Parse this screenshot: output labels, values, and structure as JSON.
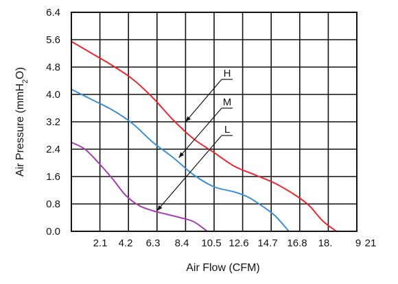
{
  "chart_data": {
    "type": "line",
    "title": "",
    "xlabel": "Air Flow (CFM)",
    "ylabel": "Air Pressure (mmH2O)",
    "xlim": [
      0,
      21
    ],
    "ylim": [
      0,
      6.4
    ],
    "x_ticks": [
      "2.1",
      "4.2",
      "6.3",
      "8.4",
      "10.5",
      "12.6",
      "14.7",
      "16.8",
      "18.",
      "9",
      "21"
    ],
    "y_ticks": [
      "6.4",
      "5.6",
      "4.8",
      "4.0",
      "3.2",
      "2.4",
      "1.6",
      "0.8",
      "0.0"
    ],
    "grid": true,
    "legend": "none",
    "series": [
      {
        "name": "H",
        "color": "#e8262e",
        "points": [
          [
            0,
            5.55
          ],
          [
            1.5,
            5.2
          ],
          [
            3,
            4.85
          ],
          [
            4.5,
            4.45
          ],
          [
            6,
            3.9
          ],
          [
            7.5,
            3.25
          ],
          [
            9,
            2.7
          ],
          [
            10.5,
            2.3
          ],
          [
            12,
            1.9
          ],
          [
            13.5,
            1.65
          ],
          [
            15,
            1.4
          ],
          [
            16.5,
            1.05
          ],
          [
            17.5,
            0.75
          ],
          [
            18.5,
            0.3
          ],
          [
            19.5,
            0.0
          ]
        ]
      },
      {
        "name": "M",
        "color": "#3a8fd4",
        "points": [
          [
            0,
            4.15
          ],
          [
            1.5,
            3.85
          ],
          [
            3,
            3.55
          ],
          [
            4.5,
            3.15
          ],
          [
            6,
            2.6
          ],
          [
            7.5,
            2.15
          ],
          [
            9,
            1.65
          ],
          [
            10.5,
            1.3
          ],
          [
            12,
            1.15
          ],
          [
            13,
            1.0
          ],
          [
            14,
            0.75
          ],
          [
            15,
            0.45
          ],
          [
            16,
            0.0
          ]
        ]
      },
      {
        "name": "L",
        "color": "#a43cae",
        "points": [
          [
            0,
            2.6
          ],
          [
            1,
            2.4
          ],
          [
            2,
            2.0
          ],
          [
            3,
            1.55
          ],
          [
            4,
            1.05
          ],
          [
            5,
            0.75
          ],
          [
            6,
            0.6
          ],
          [
            7,
            0.5
          ],
          [
            8,
            0.4
          ],
          [
            9,
            0.28
          ],
          [
            10,
            0.0
          ]
        ]
      }
    ],
    "annotations": [
      {
        "label": "H",
        "target": [
          8.4,
          3.2
        ]
      },
      {
        "label": "M",
        "target": [
          7.9,
          2.15
        ]
      },
      {
        "label": "L",
        "target": [
          6.3,
          0.6
        ]
      }
    ]
  }
}
